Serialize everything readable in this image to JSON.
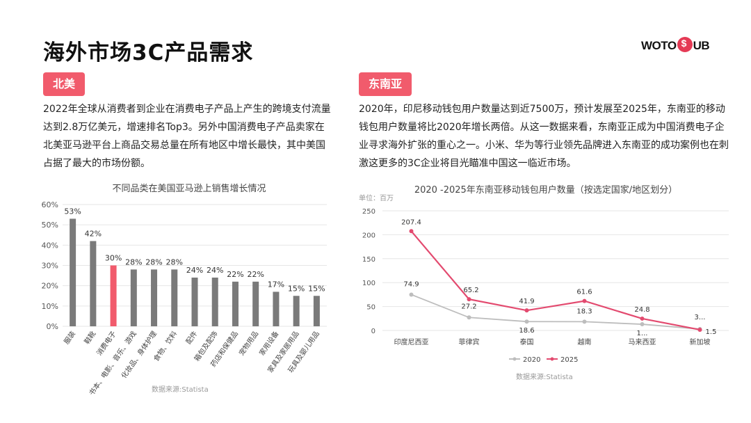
{
  "page": {
    "title": "海外市场3C产品需求",
    "logo": {
      "left": "WOTO",
      "right": "UB"
    }
  },
  "left": {
    "tag": "北美",
    "paragraph": "2022年全球从消费者到企业在消费电子产品上产生的跨境支付流量达到2.8万亿美元，增速排名Top3。另外中国消费电子产品卖家在北美亚马逊平台上商品交易总量在所有地区中增长最快，其中美国占据了最大的市场份额。"
  },
  "right": {
    "tag": "东南亚",
    "paragraph": "2020年，印尼移动钱包用户数量达到近7500万，预计发展至2025年，东南亚的移动钱包用户数量将比2020年增长两倍。从这一数据来看，东南亚正成为中国消费电子企业寻求海外扩张的重心之一。小米、华为等行业领先品牌进入东南亚的成功案例也在刺激这更多的3C企业将目光瞄准中国这一临近市场。"
  },
  "chart_data": [
    {
      "type": "bar",
      "title": "不同品类在美国亚马逊上销售增长情况",
      "source": "数据来源:Statista",
      "categories": [
        "服装",
        "鞋靴",
        "消费电子",
        "书本、电影、音乐、游戏",
        "化妆品、身体护理",
        "食物、饮料",
        "配件",
        "箱包及配饰",
        "药店和保健品",
        "宠物用品",
        "家用设备",
        "家具及家居用品",
        "玩具及婴儿用品"
      ],
      "values": [
        53,
        42,
        30,
        28,
        28,
        28,
        24,
        24,
        22,
        22,
        17,
        15,
        15
      ],
      "value_labels": [
        "53%",
        "42%",
        "30%",
        "28%",
        "28%",
        "28%",
        "24%",
        "24%",
        "22%",
        "22%",
        "17%",
        "15%",
        "15%"
      ],
      "highlight_index": 2,
      "colors": {
        "default": "#7a7a7a",
        "highlight": "#f15b6c"
      },
      "ylim": [
        0,
        60
      ],
      "yticks": [
        "0%",
        "10%",
        "20%",
        "30%",
        "40%",
        "50%",
        "60%"
      ],
      "grid": true
    },
    {
      "type": "line",
      "title": "2020 -2025年东南亚移动钱包用户数量（按选定国家/地区划分）",
      "unit": "单位：百万",
      "source": "数据来源:Statista",
      "categories": [
        "印度尼西亚",
        "菲律宾",
        "泰国",
        "越南",
        "马来西亚",
        "新加坡"
      ],
      "series": [
        {
          "name": "2020",
          "values": [
            74.9,
            27.2,
            18.6,
            18.3,
            13,
            3
          ],
          "labels": [
            "74.9",
            "27.2",
            "18.6",
            "18.3",
            "1...",
            ""
          ],
          "color": "#bdbdbd"
        },
        {
          "name": "2025",
          "values": [
            207.4,
            65.2,
            41.9,
            61.6,
            24.8,
            1.5
          ],
          "labels": [
            "207.4",
            "65.2",
            "41.9",
            "61.6",
            "24.8",
            "1.5"
          ],
          "color": "#e34a6f"
        }
      ],
      "extra_labels": [
        "3..."
      ],
      "ylim": [
        0,
        250
      ],
      "yticks": [
        "0",
        "50",
        "100",
        "150",
        "200",
        "250"
      ],
      "grid": true,
      "legend": "bottom"
    }
  ]
}
